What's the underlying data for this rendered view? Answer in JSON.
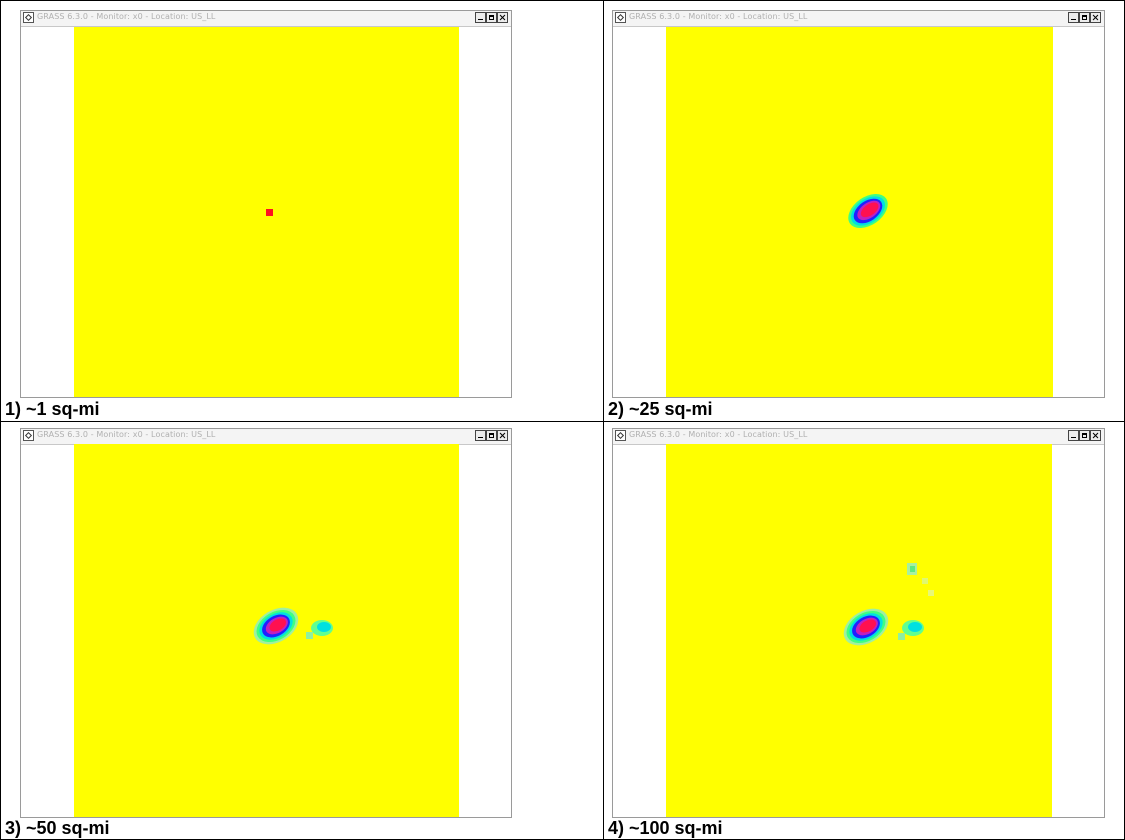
{
  "colors": {
    "background": "#ffff00",
    "core": "#ff0040",
    "ring_magenta": "#c020c0",
    "ring_blue": "#2020ff",
    "ring_cyan": "#00e8e8",
    "ring_green": "#40ff80",
    "pale_green": "#a0f0a0"
  },
  "panels": [
    {
      "window_title": "GRASS 6.3.0 - Monitor: x0 - Location: US_LL",
      "caption": "1) ~1 sq-mi"
    },
    {
      "window_title": "GRASS 6.3.0 - Monitor: x0 - Location: US_LL",
      "caption": "2) ~25 sq-mi"
    },
    {
      "window_title": "GRASS 6.3.0 - Monitor: x0 - Location: US_LL",
      "caption": "3) ~50 sq-mi"
    },
    {
      "window_title": "GRASS 6.3.0 - Monitor: x0 - Location: US_LL",
      "caption": "4) ~100 sq-mi"
    }
  ]
}
